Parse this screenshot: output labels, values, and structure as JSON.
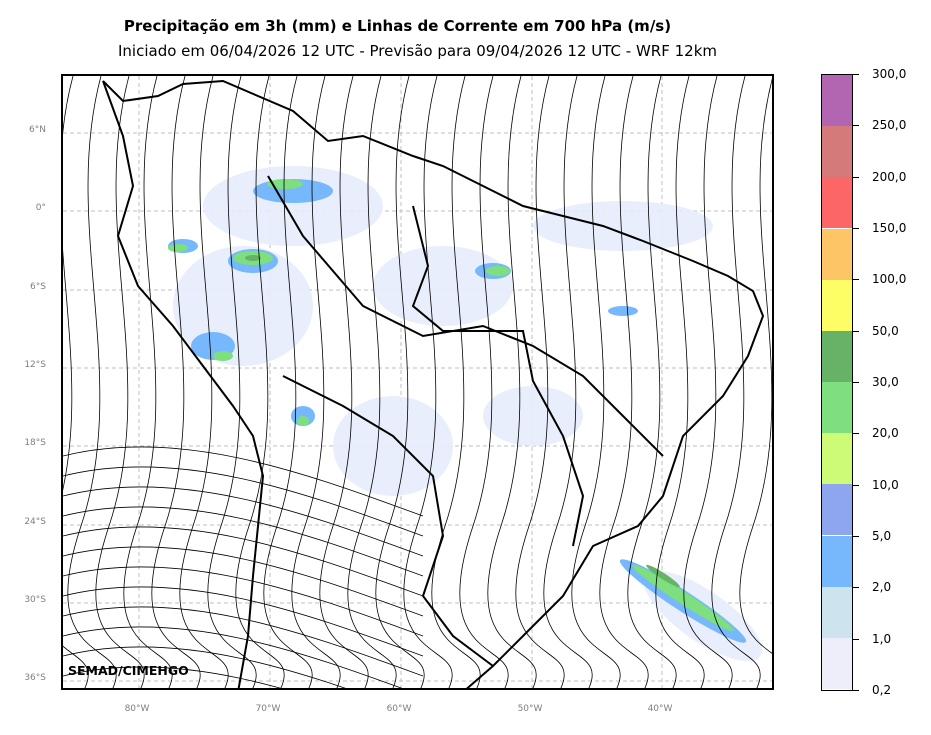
{
  "title": {
    "line1": "Precipitação em 3h (mm) e Linhas de Corrente em 700 hPa (m/s)",
    "line2": "Iniciado em 06/04/2026 12 UTC - Previsão para 09/04/2026 12 UTC - WRF 12km"
  },
  "map": {
    "lat_labels": [
      "6°N",
      "0°",
      "6°S",
      "12°S",
      "18°S",
      "24°S",
      "30°S",
      "36°S"
    ],
    "lon_labels": [
      "80°W",
      "70°W",
      "60°W",
      "50°W",
      "40°W"
    ],
    "credit": "SEMAD/CIMEHGO"
  },
  "colorbar": {
    "labels": [
      "0,2",
      "1,0",
      "2,0",
      "5,0",
      "10,0",
      "20,0",
      "30,0",
      "50,0",
      "100,0",
      "150,0",
      "200,0",
      "250,0",
      "300,0"
    ],
    "colors": [
      "#eeeefa",
      "#cde4ee",
      "#76b8fb",
      "#8ea6ee",
      "#cdfb76",
      "#7ddf7d",
      "#66b266",
      "#fdfd66",
      "#fdc566",
      "#fd6666",
      "#d47a7a",
      "#b266b2"
    ]
  },
  "colors": {
    "border": "#000000",
    "grid": "#bfbfbf",
    "streamline": "#000000"
  }
}
